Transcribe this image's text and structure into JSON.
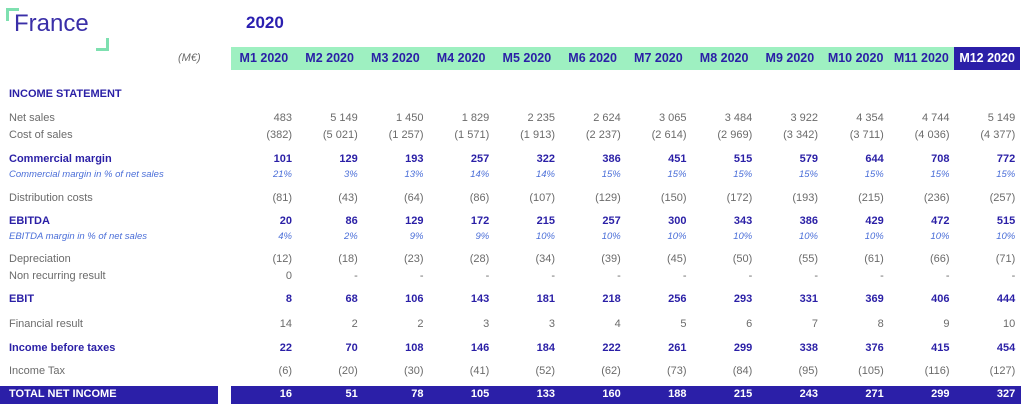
{
  "header": {
    "country": "France",
    "year": "2020",
    "unit": "(M€)"
  },
  "columns": [
    "M1 2020",
    "M2 2020",
    "M3 2020",
    "M4 2020",
    "M5 2020",
    "M6 2020",
    "M7 2020",
    "M8 2020",
    "M9 2020",
    "M10 2020",
    "M11 2020",
    "M12 2020"
  ],
  "section_title": "INCOME STATEMENT",
  "rows": [
    {
      "label": "Net sales",
      "style": "normal",
      "values": [
        "483",
        "5 149",
        "1 450",
        "1 829",
        "2 235",
        "2 624",
        "3 065",
        "3 484",
        "3 922",
        "4 354",
        "4 744",
        "5 149"
      ]
    },
    {
      "label": "Cost of sales",
      "style": "normal",
      "values": [
        "(382)",
        "(5 021)",
        "(1 257)",
        "(1 571)",
        "(1 913)",
        "(2 237)",
        "(2 614)",
        "(2 969)",
        "(3 342)",
        "(3 711)",
        "(4 036)",
        "(4 377)"
      ]
    },
    {
      "label": "Commercial margin",
      "style": "bold",
      "values": [
        "101",
        "129",
        "193",
        "257",
        "322",
        "386",
        "451",
        "515",
        "579",
        "644",
        "708",
        "772"
      ]
    },
    {
      "label": "Commercial margin in % of net sales",
      "style": "pct",
      "values": [
        "21%",
        "3%",
        "13%",
        "14%",
        "14%",
        "15%",
        "15%",
        "15%",
        "15%",
        "15%",
        "15%",
        "15%"
      ]
    },
    {
      "label": "Distribution costs",
      "style": "normal",
      "values": [
        "(81)",
        "(43)",
        "(64)",
        "(86)",
        "(107)",
        "(129)",
        "(150)",
        "(172)",
        "(193)",
        "(215)",
        "(236)",
        "(257)"
      ]
    },
    {
      "label": "EBITDA",
      "style": "bold",
      "values": [
        "20",
        "86",
        "129",
        "172",
        "215",
        "257",
        "300",
        "343",
        "386",
        "429",
        "472",
        "515"
      ]
    },
    {
      "label": "EBITDA margin in % of net sales",
      "style": "pct",
      "values": [
        "4%",
        "2%",
        "9%",
        "9%",
        "10%",
        "10%",
        "10%",
        "10%",
        "10%",
        "10%",
        "10%",
        "10%"
      ]
    },
    {
      "label": "Depreciation",
      "style": "normal",
      "values": [
        "(12)",
        "(18)",
        "(23)",
        "(28)",
        "(34)",
        "(39)",
        "(45)",
        "(50)",
        "(55)",
        "(61)",
        "(66)",
        "(71)"
      ]
    },
    {
      "label": "Non recurring result",
      "style": "normal",
      "values": [
        "0",
        "-",
        "-",
        "-",
        "-",
        "-",
        "-",
        "-",
        "-",
        "-",
        "-",
        "-"
      ]
    },
    {
      "label": "EBIT",
      "style": "bold",
      "values": [
        "8",
        "68",
        "106",
        "143",
        "181",
        "218",
        "256",
        "293",
        "331",
        "369",
        "406",
        "444"
      ]
    },
    {
      "label": "Financial result",
      "style": "normal",
      "values": [
        "14",
        "2",
        "2",
        "3",
        "3",
        "4",
        "5",
        "6",
        "7",
        "8",
        "9",
        "10"
      ]
    },
    {
      "label": "Income before taxes",
      "style": "bold",
      "values": [
        "22",
        "70",
        "108",
        "146",
        "184",
        "222",
        "261",
        "299",
        "338",
        "376",
        "415",
        "454"
      ]
    },
    {
      "label": "Income Tax",
      "style": "normal",
      "values": [
        "(6)",
        "(20)",
        "(30)",
        "(41)",
        "(52)",
        "(62)",
        "(73)",
        "(84)",
        "(95)",
        "(105)",
        "(116)",
        "(127)"
      ]
    }
  ],
  "total": {
    "label": "TOTAL NET INCOME",
    "values": [
      "16",
      "51",
      "78",
      "105",
      "133",
      "160",
      "188",
      "215",
      "243",
      "271",
      "299",
      "327"
    ]
  },
  "colors": {
    "header_bg": "#9ef0c1",
    "accent": "#2b1fa8",
    "pct_text": "#4a6ed8",
    "muted_text": "#6b6b6b"
  }
}
